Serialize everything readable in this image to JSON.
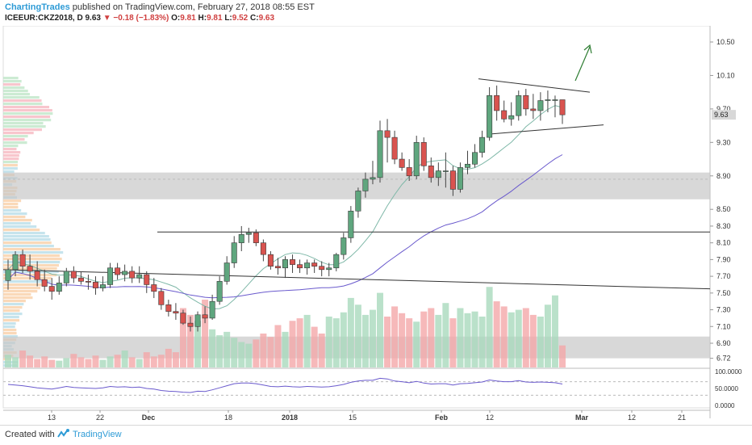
{
  "header": {
    "author": "ChartingTrades",
    "published_text": "published on TradingView.com, February 27, 2018 08:55 EST",
    "symbol": "ICEEUR:CKZ2018, D",
    "last": "9.63",
    "down_arrow": "▼",
    "change": "−0.18 (−1.83%)",
    "o_label": "O:",
    "o_value": "9.81",
    "h_label": "H:",
    "h_value": "9.81",
    "l_label": "L:",
    "l_value": "9.52",
    "c_label": "C:",
    "c_value": "9.63"
  },
  "footer": {
    "created_with": "Created with",
    "brand": "TradingView"
  },
  "colors": {
    "up": "#5fa67e",
    "down": "#d9534f",
    "ma_fast": "#7fb8a8",
    "ma_slow": "#6a5acd",
    "rsi": "#6a5acd",
    "zone": "#c8c8c8",
    "annotation_arrow": "#2e7d32"
  },
  "chart_data": {
    "type": "candlestick",
    "x": [
      "Nov 6",
      "Nov 7",
      "Nov 8",
      "Nov 9",
      "Nov 10",
      "Nov 13",
      "Nov 14",
      "Nov 15",
      "Nov 16",
      "Nov 17",
      "Nov 20",
      "Nov 21",
      "Nov 22",
      "Nov 24",
      "Nov 27",
      "Nov 28",
      "Nov 29",
      "Nov 30",
      "Dec 1",
      "Dec 4",
      "Dec 5",
      "Dec 6",
      "Dec 7",
      "Dec 8",
      "Dec 11",
      "Dec 12",
      "Dec 13",
      "Dec 14",
      "Dec 15",
      "Dec 18",
      "Dec 19",
      "Dec 20",
      "Dec 21",
      "Dec 22",
      "Dec 27",
      "Dec 28",
      "Dec 29",
      "Jan 2",
      "Jan 3",
      "Jan 4",
      "Jan 5",
      "Jan 8",
      "Jan 9",
      "Jan 10",
      "Jan 11",
      "Jan 12",
      "Jan 15",
      "Jan 16",
      "Jan 17",
      "Jan 18",
      "Jan 19",
      "Jan 22",
      "Jan 23",
      "Jan 24",
      "Jan 25",
      "Jan 26",
      "Jan 29",
      "Jan 30",
      "Jan 31",
      "Feb 1",
      "Feb 2",
      "Feb 5",
      "Feb 6",
      "Feb 7",
      "Feb 8",
      "Feb 9",
      "Feb 12",
      "Feb 13",
      "Feb 14",
      "Feb 15",
      "Feb 16",
      "Feb 20",
      "Feb 21",
      "Feb 22",
      "Feb 23",
      "Feb 26",
      "Feb 27"
    ],
    "open": [
      7.65,
      7.78,
      7.96,
      7.82,
      7.76,
      7.66,
      7.58,
      7.52,
      7.62,
      7.76,
      7.68,
      7.64,
      7.63,
      7.56,
      7.6,
      7.8,
      7.72,
      7.76,
      7.68,
      7.72,
      7.6,
      7.52,
      7.36,
      7.28,
      7.26,
      7.14,
      7.1,
      7.24,
      7.2,
      7.4,
      7.64,
      7.86,
      8.1,
      8.2,
      8.22,
      8.1,
      7.96,
      7.82,
      7.8,
      7.9,
      7.84,
      7.8,
      7.86,
      7.82,
      7.78,
      7.8,
      7.96,
      8.16,
      8.48,
      8.72,
      8.86,
      8.88,
      9.44,
      9.36,
      9.1,
      9.0,
      8.9,
      9.3,
      9.02,
      8.88,
      8.96,
      8.96,
      8.74,
      9.0,
      9.04,
      9.18,
      9.36,
      9.86,
      9.68,
      9.58,
      9.62,
      9.86,
      9.7,
      9.68,
      9.8,
      9.81,
      9.81
    ],
    "high": [
      7.9,
      8.0,
      8.02,
      7.96,
      7.88,
      7.78,
      7.68,
      7.7,
      7.8,
      7.82,
      7.76,
      7.72,
      7.7,
      7.7,
      7.86,
      7.86,
      7.84,
      7.82,
      7.82,
      7.76,
      7.68,
      7.56,
      7.42,
      7.38,
      7.3,
      7.22,
      7.28,
      7.34,
      7.48,
      7.7,
      7.94,
      8.18,
      8.3,
      8.28,
      8.26,
      8.14,
      8.0,
      7.92,
      7.94,
      7.96,
      7.9,
      7.9,
      7.9,
      7.88,
      7.86,
      7.98,
      8.22,
      8.54,
      8.76,
      8.94,
      9.08,
      9.56,
      9.58,
      9.44,
      9.18,
      9.1,
      9.38,
      9.36,
      9.12,
      9.06,
      9.18,
      9.02,
      9.06,
      9.2,
      9.28,
      9.44,
      9.96,
      9.98,
      9.8,
      9.78,
      9.92,
      9.94,
      9.88,
      9.9,
      9.92,
      9.86,
      9.81
    ],
    "low": [
      7.54,
      7.7,
      7.74,
      7.66,
      7.58,
      7.52,
      7.42,
      7.48,
      7.58,
      7.62,
      7.6,
      7.54,
      7.48,
      7.52,
      7.56,
      7.66,
      7.64,
      7.62,
      7.62,
      7.5,
      7.44,
      7.3,
      7.22,
      7.18,
      7.12,
      7.04,
      7.04,
      7.14,
      7.18,
      7.36,
      7.6,
      7.8,
      8.0,
      8.1,
      8.06,
      7.88,
      7.78,
      7.72,
      7.68,
      7.74,
      7.74,
      7.72,
      7.74,
      7.7,
      7.7,
      7.76,
      7.9,
      8.1,
      8.4,
      8.64,
      8.8,
      8.82,
      9.06,
      9.04,
      8.96,
      8.84,
      8.86,
      8.96,
      8.82,
      8.78,
      8.76,
      8.66,
      8.7,
      8.92,
      9.0,
      9.12,
      9.32,
      9.56,
      9.54,
      9.5,
      9.56,
      9.62,
      9.58,
      9.56,
      9.66,
      9.6,
      9.52
    ],
    "close": [
      7.78,
      7.96,
      7.82,
      7.76,
      7.66,
      7.58,
      7.52,
      7.62,
      7.76,
      7.68,
      7.64,
      7.63,
      7.56,
      7.6,
      7.8,
      7.72,
      7.76,
      7.68,
      7.72,
      7.6,
      7.52,
      7.36,
      7.28,
      7.26,
      7.14,
      7.1,
      7.24,
      7.2,
      7.4,
      7.64,
      7.86,
      8.1,
      8.2,
      8.22,
      8.1,
      7.96,
      7.82,
      7.8,
      7.9,
      7.84,
      7.8,
      7.86,
      7.82,
      7.78,
      7.8,
      7.96,
      8.16,
      8.48,
      8.72,
      8.86,
      8.88,
      9.44,
      9.36,
      9.1,
      9.0,
      8.9,
      9.3,
      9.02,
      8.88,
      8.96,
      8.96,
      8.74,
      9.0,
      9.04,
      9.18,
      9.36,
      9.86,
      9.68,
      9.58,
      9.62,
      9.86,
      9.7,
      9.68,
      9.8,
      9.81,
      9.81,
      9.63
    ],
    "volume_scale_note": "",
    "volume": [
      0.15,
      0.12,
      0.2,
      0.14,
      0.1,
      0.13,
      0.09,
      0.08,
      0.11,
      0.16,
      0.12,
      0.1,
      0.14,
      0.09,
      0.13,
      0.15,
      0.2,
      0.12,
      0.1,
      0.18,
      0.13,
      0.15,
      0.22,
      0.18,
      0.7,
      0.62,
      0.55,
      0.8,
      0.45,
      0.38,
      0.42,
      0.35,
      0.3,
      0.28,
      0.33,
      0.4,
      0.36,
      0.5,
      0.42,
      0.55,
      0.58,
      0.62,
      0.48,
      0.4,
      0.6,
      0.58,
      0.65,
      0.82,
      0.74,
      0.62,
      0.68,
      0.88,
      0.6,
      0.72,
      0.64,
      0.58,
      0.54,
      0.66,
      0.7,
      0.62,
      0.76,
      0.58,
      0.7,
      0.64,
      0.66,
      0.6,
      0.95,
      0.78,
      0.72,
      0.65,
      0.68,
      0.7,
      0.62,
      0.6,
      0.74,
      0.85,
      0.26
    ],
    "rsi": [
      62,
      60,
      58,
      55,
      52,
      50,
      48,
      52,
      56,
      53,
      52,
      51,
      50,
      52,
      56,
      54,
      55,
      53,
      54,
      50,
      48,
      44,
      42,
      41,
      39,
      38,
      42,
      41,
      46,
      52,
      58,
      64,
      66,
      66,
      64,
      60,
      56,
      55,
      57,
      55,
      54,
      56,
      55,
      54,
      55,
      58,
      62,
      68,
      72,
      74,
      74,
      80,
      78,
      72,
      70,
      67,
      71,
      66,
      63,
      64,
      64,
      60,
      64,
      65,
      67,
      69,
      75,
      72,
      70,
      70,
      73,
      69,
      68,
      69,
      68,
      67,
      63
    ],
    "yticks": [
      "10.50",
      "10.10",
      "9.70",
      "9.30",
      "8.90",
      "8.50",
      "8.30",
      "8.10",
      "7.90",
      "7.70",
      "7.50",
      "7.30",
      "7.10",
      "6.90",
      "6.72"
    ],
    "last_price_label": "9.63",
    "rsi_ticks": [
      "100.0000",
      "50.0000",
      "0.0000"
    ],
    "xticks": [
      "13",
      "22",
      "Dec",
      "18",
      "2018",
      "15",
      "Feb",
      "12",
      "Mar",
      "12",
      "21"
    ],
    "ylim": [
      6.72,
      10.65
    ],
    "grid": false,
    "support_zones": [
      [
        8.62,
        8.94
      ],
      [
        6.72,
        6.98
      ]
    ],
    "horizontal_lines": [
      8.23
    ],
    "indicators": [
      "moving average (fast)",
      "moving average (slow)",
      "volume profile",
      "RSI"
    ]
  }
}
